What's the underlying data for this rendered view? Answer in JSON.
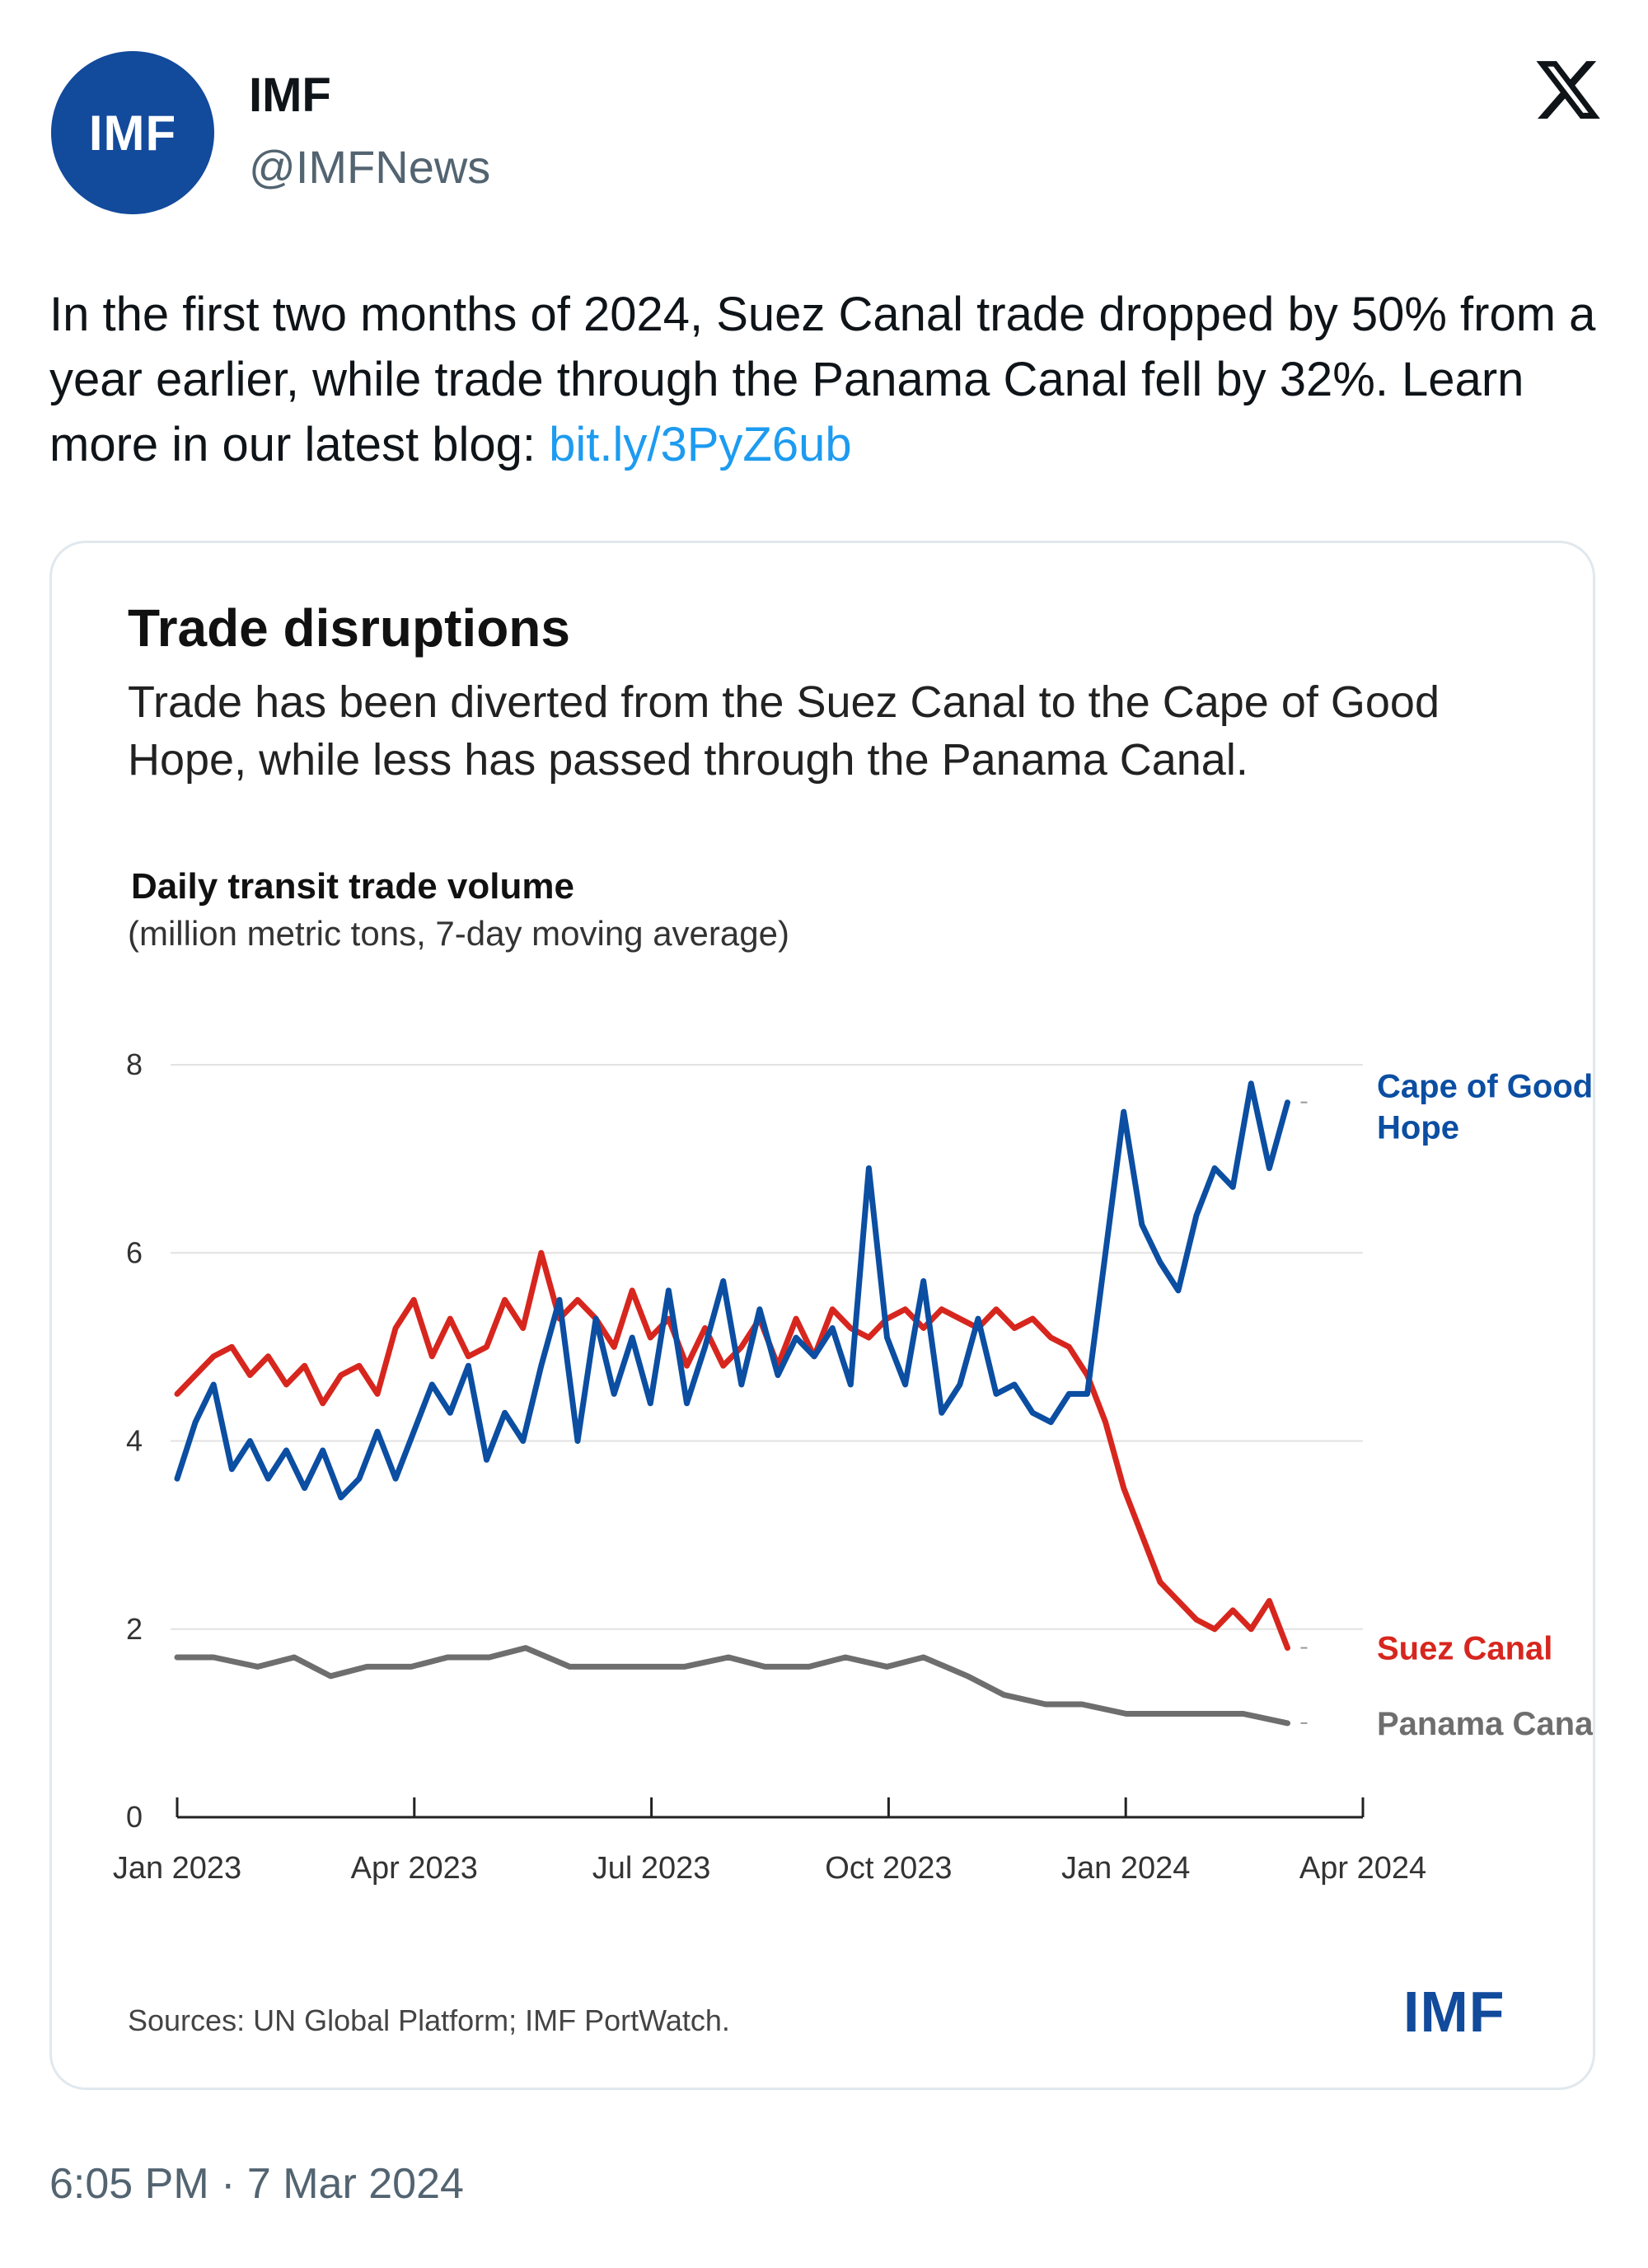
{
  "header": {
    "avatar_text": "IMF",
    "name": "IMF",
    "handle": "@IMFNews",
    "platform_icon": "x-logo-icon"
  },
  "tweet": {
    "text": "In the first two months of 2024, Suez Canal trade dropped by 50% from a year earlier, while trade through the Panama Canal fell by 32%. Learn more in our latest blog: ",
    "link": "bit.ly/3PyZ6ub"
  },
  "card": {
    "title": "Trade disruptions",
    "subtitle": "Trade has been diverted from the Suez Canal to the Cape of Good Hope, while less has passed through the Panama Canal.",
    "chart_heading": "Daily transit trade volume",
    "chart_units": "(million metric tons, 7-day moving average)",
    "source": "Sources: UN Global Platform; IMF PortWatch.",
    "logo": "IMF"
  },
  "timestamp": "6:05 PM · 7 Mar 2024",
  "colors": {
    "cape": "#0b4ea2",
    "suez": "#d7261e",
    "panama": "#6e6e6e",
    "brand": "#124a9c",
    "link": "#1d9bf0"
  },
  "chart_data": {
    "type": "line",
    "title": "Daily transit trade volume",
    "ylabel": "million metric tons, 7-day moving average",
    "ylim": [
      0,
      8
    ],
    "yticks": [
      0,
      2,
      4,
      6,
      8
    ],
    "xlim": [
      "2023-01-01",
      "2024-04-01"
    ],
    "xticks": [
      "Jan 2023",
      "Apr 2023",
      "Jul 2023",
      "Oct 2023",
      "Jan 2024",
      "Apr 2024"
    ],
    "series": [
      {
        "name": "Cape of Good Hope",
        "color": "#0b4ea2",
        "points": [
          [
            "2023-01-01",
            3.6
          ],
          [
            "2023-01-08",
            4.2
          ],
          [
            "2023-01-15",
            4.6
          ],
          [
            "2023-01-22",
            3.7
          ],
          [
            "2023-01-29",
            4.0
          ],
          [
            "2023-02-05",
            3.6
          ],
          [
            "2023-02-12",
            3.9
          ],
          [
            "2023-02-19",
            3.5
          ],
          [
            "2023-02-26",
            3.9
          ],
          [
            "2023-03-05",
            3.4
          ],
          [
            "2023-03-12",
            3.6
          ],
          [
            "2023-03-19",
            4.1
          ],
          [
            "2023-03-26",
            3.6
          ],
          [
            "2023-04-02",
            4.1
          ],
          [
            "2023-04-09",
            4.6
          ],
          [
            "2023-04-16",
            4.3
          ],
          [
            "2023-04-23",
            4.8
          ],
          [
            "2023-04-30",
            3.8
          ],
          [
            "2023-05-07",
            4.3
          ],
          [
            "2023-05-14",
            4.0
          ],
          [
            "2023-05-21",
            4.8
          ],
          [
            "2023-05-28",
            5.5
          ],
          [
            "2023-06-04",
            4.0
          ],
          [
            "2023-06-11",
            5.3
          ],
          [
            "2023-06-18",
            4.5
          ],
          [
            "2023-06-25",
            5.1
          ],
          [
            "2023-07-02",
            4.4
          ],
          [
            "2023-07-09",
            5.6
          ],
          [
            "2023-07-16",
            4.4
          ],
          [
            "2023-07-23",
            5.0
          ],
          [
            "2023-07-30",
            5.7
          ],
          [
            "2023-08-06",
            4.6
          ],
          [
            "2023-08-13",
            5.4
          ],
          [
            "2023-08-20",
            4.7
          ],
          [
            "2023-08-27",
            5.1
          ],
          [
            "2023-09-03",
            4.9
          ],
          [
            "2023-09-10",
            5.2
          ],
          [
            "2023-09-17",
            4.6
          ],
          [
            "2023-09-24",
            6.9
          ],
          [
            "2023-10-01",
            5.1
          ],
          [
            "2023-10-08",
            4.6
          ],
          [
            "2023-10-15",
            5.7
          ],
          [
            "2023-10-22",
            4.3
          ],
          [
            "2023-10-29",
            4.6
          ],
          [
            "2023-11-05",
            5.3
          ],
          [
            "2023-11-12",
            4.5
          ],
          [
            "2023-11-19",
            4.6
          ],
          [
            "2023-11-26",
            4.3
          ],
          [
            "2023-12-03",
            4.2
          ],
          [
            "2023-12-10",
            4.5
          ],
          [
            "2023-12-17",
            4.5
          ],
          [
            "2023-12-24",
            6.0
          ],
          [
            "2023-12-31",
            7.5
          ],
          [
            "2024-01-07",
            6.3
          ],
          [
            "2024-01-14",
            5.9
          ],
          [
            "2024-01-21",
            5.6
          ],
          [
            "2024-01-28",
            6.4
          ],
          [
            "2024-02-04",
            6.9
          ],
          [
            "2024-02-11",
            6.7
          ],
          [
            "2024-02-18",
            7.8
          ],
          [
            "2024-02-25",
            6.9
          ],
          [
            "2024-03-03",
            7.6
          ]
        ]
      },
      {
        "name": "Suez Canal",
        "color": "#d7261e",
        "points": [
          [
            "2023-01-01",
            4.5
          ],
          [
            "2023-01-08",
            4.7
          ],
          [
            "2023-01-15",
            4.9
          ],
          [
            "2023-01-22",
            5.0
          ],
          [
            "2023-01-29",
            4.7
          ],
          [
            "2023-02-05",
            4.9
          ],
          [
            "2023-02-12",
            4.6
          ],
          [
            "2023-02-19",
            4.8
          ],
          [
            "2023-02-26",
            4.4
          ],
          [
            "2023-03-05",
            4.7
          ],
          [
            "2023-03-12",
            4.8
          ],
          [
            "2023-03-19",
            4.5
          ],
          [
            "2023-03-26",
            5.2
          ],
          [
            "2023-04-02",
            5.5
          ],
          [
            "2023-04-09",
            4.9
          ],
          [
            "2023-04-16",
            5.3
          ],
          [
            "2023-04-23",
            4.9
          ],
          [
            "2023-04-30",
            5.0
          ],
          [
            "2023-05-07",
            5.5
          ],
          [
            "2023-05-14",
            5.2
          ],
          [
            "2023-05-21",
            6.0
          ],
          [
            "2023-05-28",
            5.3
          ],
          [
            "2023-06-04",
            5.5
          ],
          [
            "2023-06-11",
            5.3
          ],
          [
            "2023-06-18",
            5.0
          ],
          [
            "2023-06-25",
            5.6
          ],
          [
            "2023-07-02",
            5.1
          ],
          [
            "2023-07-09",
            5.3
          ],
          [
            "2023-07-16",
            4.8
          ],
          [
            "2023-07-23",
            5.2
          ],
          [
            "2023-07-30",
            4.8
          ],
          [
            "2023-08-06",
            5.0
          ],
          [
            "2023-08-13",
            5.3
          ],
          [
            "2023-08-20",
            4.8
          ],
          [
            "2023-08-27",
            5.3
          ],
          [
            "2023-09-03",
            4.9
          ],
          [
            "2023-09-10",
            5.4
          ],
          [
            "2023-09-17",
            5.2
          ],
          [
            "2023-09-24",
            5.1
          ],
          [
            "2023-10-01",
            5.3
          ],
          [
            "2023-10-08",
            5.4
          ],
          [
            "2023-10-15",
            5.2
          ],
          [
            "2023-10-22",
            5.4
          ],
          [
            "2023-10-29",
            5.3
          ],
          [
            "2023-11-05",
            5.2
          ],
          [
            "2023-11-12",
            5.4
          ],
          [
            "2023-11-19",
            5.2
          ],
          [
            "2023-11-26",
            5.3
          ],
          [
            "2023-12-03",
            5.1
          ],
          [
            "2023-12-10",
            5.0
          ],
          [
            "2023-12-17",
            4.7
          ],
          [
            "2023-12-24",
            4.2
          ],
          [
            "2023-12-31",
            3.5
          ],
          [
            "2024-01-07",
            3.0
          ],
          [
            "2024-01-14",
            2.5
          ],
          [
            "2024-01-21",
            2.3
          ],
          [
            "2024-01-28",
            2.1
          ],
          [
            "2024-02-04",
            2.0
          ],
          [
            "2024-02-11",
            2.2
          ],
          [
            "2024-02-18",
            2.0
          ],
          [
            "2024-02-25",
            2.3
          ],
          [
            "2024-03-03",
            1.8
          ]
        ]
      },
      {
        "name": "Panama Canal",
        "color": "#6e6e6e",
        "points": [
          [
            "2023-01-01",
            1.7
          ],
          [
            "2023-01-15",
            1.7
          ],
          [
            "2023-02-01",
            1.6
          ],
          [
            "2023-02-15",
            1.7
          ],
          [
            "2023-03-01",
            1.5
          ],
          [
            "2023-03-15",
            1.6
          ],
          [
            "2023-04-01",
            1.6
          ],
          [
            "2023-04-15",
            1.7
          ],
          [
            "2023-05-01",
            1.7
          ],
          [
            "2023-05-15",
            1.8
          ],
          [
            "2023-06-01",
            1.6
          ],
          [
            "2023-06-15",
            1.6
          ],
          [
            "2023-07-01",
            1.6
          ],
          [
            "2023-07-15",
            1.6
          ],
          [
            "2023-08-01",
            1.7
          ],
          [
            "2023-08-15",
            1.6
          ],
          [
            "2023-09-01",
            1.6
          ],
          [
            "2023-09-15",
            1.7
          ],
          [
            "2023-10-01",
            1.6
          ],
          [
            "2023-10-15",
            1.7
          ],
          [
            "2023-11-01",
            1.5
          ],
          [
            "2023-11-15",
            1.3
          ],
          [
            "2023-12-01",
            1.2
          ],
          [
            "2023-12-15",
            1.2
          ],
          [
            "2024-01-01",
            1.1
          ],
          [
            "2024-01-15",
            1.1
          ],
          [
            "2024-02-01",
            1.1
          ],
          [
            "2024-02-15",
            1.1
          ],
          [
            "2024-03-03",
            1.0
          ]
        ]
      }
    ]
  }
}
